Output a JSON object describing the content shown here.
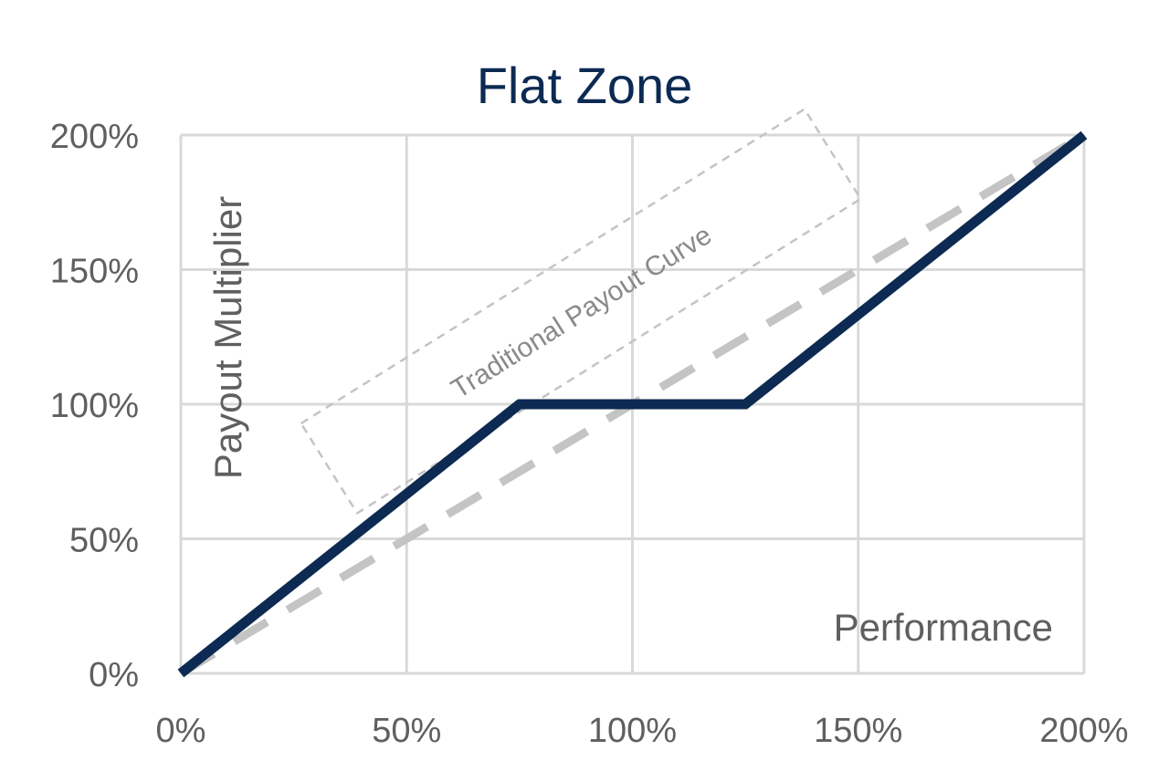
{
  "chart_data": {
    "type": "line",
    "title": "Flat Zone",
    "xlabel": "Performance",
    "ylabel": "Payout Multiplier",
    "xlim": [
      0,
      200
    ],
    "ylim": [
      0,
      200
    ],
    "x_ticks": [
      "0%",
      "50%",
      "100%",
      "150%",
      "200%"
    ],
    "y_ticks": [
      "0%",
      "50%",
      "100%",
      "150%",
      "200%"
    ],
    "grid": true,
    "series": [
      {
        "color": "#0c2a52",
        "style": "solid",
        "x": [
          0,
          75,
          125,
          200
        ],
        "y": [
          0,
          100,
          100,
          200
        ]
      },
      {
        "color": "#c4c4c4",
        "style": "dashed",
        "x": [
          0,
          200
        ],
        "y": [
          0,
          200
        ]
      }
    ],
    "annotations": [
      {
        "text": "Traditional Payout Curve",
        "style": "dashed-box",
        "rotation_deg": -32
      }
    ]
  }
}
